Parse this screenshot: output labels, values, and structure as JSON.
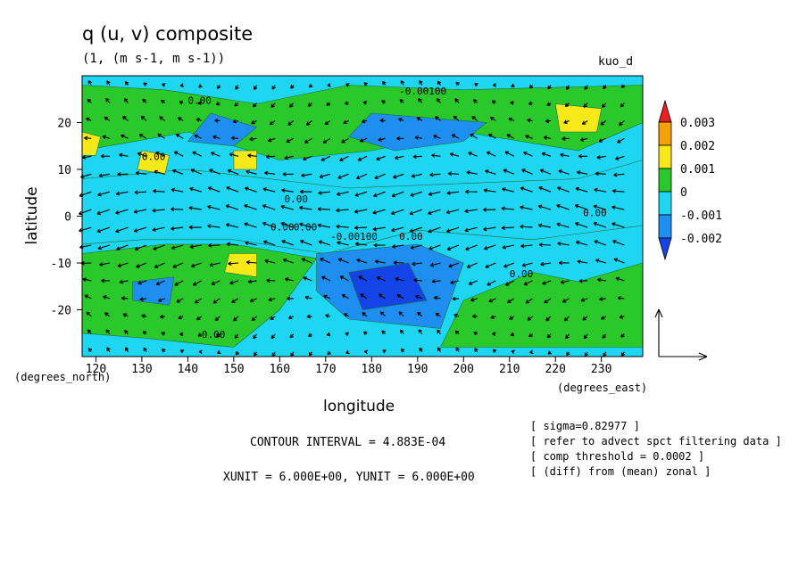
{
  "header": {
    "title": "q (u, v) composite",
    "subtitle": "(1, (m s-1, m s-1))",
    "tag": "kuo_d"
  },
  "footer": {
    "contour_interval": "CONTOUR INTERVAL = 4.883E-04",
    "xy_unit": "XUNIT = 6.000E+00, YUNIT = 6.000E+00",
    "notes": [
      "[ sigma=0.82977 ]",
      "[ refer to advect spct filtering data ]",
      "[ comp threshold = 0.0002 ]",
      "[ (diff) from (mean) zonal ]"
    ]
  },
  "chart_data": {
    "type": "heatmap",
    "title": "q (u, v) composite",
    "subtitle": "(1, (m s-1, m s-1))",
    "xlabel": "longitude",
    "ylabel": "latitude",
    "x_unit_label": "(degrees_east)",
    "y_unit_label": "(degrees_north)",
    "xlim": [
      117,
      239
    ],
    "ylim": [
      -30,
      30
    ],
    "x_ticks": [
      "120",
      "130",
      "140",
      "150",
      "160",
      "170",
      "180",
      "190",
      "200",
      "210",
      "220",
      "230"
    ],
    "y_ticks": [
      "20",
      "10",
      "0",
      "-10",
      "-20"
    ],
    "colorbar": {
      "levels": [
        "0.003",
        "0.002",
        "0.001",
        "0",
        "-0.001",
        "-0.002"
      ],
      "colors": [
        "#e8201f",
        "#f5a10a",
        "#f7e81a",
        "#2bc82b",
        "#1fd6f2",
        "#1e8ff0",
        "#1444e8"
      ]
    },
    "contour_labels": [
      "0.00",
      "-0.00100",
      "0.00",
      "0.00",
      "0.00",
      "-0.00100",
      "0.00",
      "0.00",
      "0.00",
      "0.00",
      "0.00"
    ],
    "vector_field": "wind (u, v) arrows overlay, predominantly easterly",
    "regions": [
      {
        "level": 0.0005,
        "polys": [
          [
            [
              117,
              28
            ],
            [
              135,
              27
            ],
            [
              155,
              24
            ],
            [
              175,
              28
            ],
            [
              200,
              27
            ],
            [
              239,
              28
            ],
            [
              239,
              20
            ],
            [
              225,
              14
            ],
            [
              200,
              18
            ],
            [
              180,
              14
            ],
            [
              160,
              12
            ],
            [
              140,
              18
            ],
            [
              117,
              14
            ]
          ]
        ]
      },
      {
        "level": -0.0005,
        "polys": [
          [
            [
              117,
              8
            ],
            [
              140,
              10
            ],
            [
              175,
              6
            ],
            [
              200,
              7
            ],
            [
              225,
              8
            ],
            [
              239,
              12
            ],
            [
              239,
              -2
            ],
            [
              215,
              -5
            ],
            [
              190,
              -3
            ],
            [
              170,
              -8
            ],
            [
              150,
              -5
            ],
            [
              130,
              -5
            ],
            [
              117,
              -6
            ]
          ]
        ]
      },
      {
        "level": 0.0005,
        "polys": [
          [
            [
              117,
              -8
            ],
            [
              135,
              -6
            ],
            [
              150,
              -6
            ],
            [
              168,
              -9
            ],
            [
              160,
              -20
            ],
            [
              150,
              -28
            ],
            [
              130,
              -26
            ],
            [
              117,
              -25
            ]
          ]
        ]
      },
      {
        "level": 0.0005,
        "polys": [
          [
            [
              200,
              -18
            ],
            [
              215,
              -12
            ],
            [
              225,
              -14
            ],
            [
              239,
              -10
            ],
            [
              239,
              -28
            ],
            [
              215,
              -28
            ],
            [
              195,
              -28
            ]
          ]
        ]
      },
      {
        "level": -0.0012,
        "polys": [
          [
            [
              145,
              22
            ],
            [
              155,
              19
            ],
            [
              150,
              15
            ],
            [
              140,
              16
            ]
          ]
        ]
      },
      {
        "level": -0.0012,
        "polys": [
          [
            [
              180,
              22
            ],
            [
              205,
              20
            ],
            [
              200,
              16
            ],
            [
              185,
              14
            ],
            [
              175,
              17
            ]
          ]
        ]
      },
      {
        "level": -0.0012,
        "polys": [
          [
            [
              168,
              -8
            ],
            [
              190,
              -6
            ],
            [
              200,
              -10
            ],
            [
              195,
              -24
            ],
            [
              175,
              -22
            ],
            [
              168,
              -16
            ]
          ]
        ]
      },
      {
        "level": -0.0022,
        "polys": [
          [
            [
              175,
              -12
            ],
            [
              188,
              -10
            ],
            [
              192,
              -18
            ],
            [
              178,
              -20
            ]
          ]
        ]
      },
      {
        "level": 0.0015,
        "polys": [
          [
            [
              130,
              14
            ],
            [
              136,
              13
            ],
            [
              135,
              9
            ],
            [
              129,
              10
            ]
          ]
        ]
      },
      {
        "level": 0.0015,
        "polys": [
          [
            [
              150,
              14
            ],
            [
              155,
              14
            ],
            [
              155,
              10
            ],
            [
              150,
              10
            ]
          ]
        ]
      },
      {
        "level": 0.0015,
        "polys": [
          [
            [
              149,
              -8
            ],
            [
              155,
              -8
            ],
            [
              155,
              -13
            ],
            [
              148,
              -12
            ]
          ]
        ]
      },
      {
        "level": 0.0015,
        "polys": [
          [
            [
              220,
              24
            ],
            [
              230,
              23
            ],
            [
              229,
              18
            ],
            [
              221,
              18
            ]
          ]
        ]
      },
      {
        "level": 0.0015,
        "polys": [
          [
            [
              117,
              18
            ],
            [
              121,
              17
            ],
            [
              120,
              13
            ],
            [
              117,
              13
            ]
          ]
        ]
      },
      {
        "level": -0.0012,
        "polys": [
          [
            [
              128,
              -14
            ],
            [
              137,
              -13
            ],
            [
              136,
              -19
            ],
            [
              128,
              -18
            ]
          ]
        ]
      }
    ]
  }
}
